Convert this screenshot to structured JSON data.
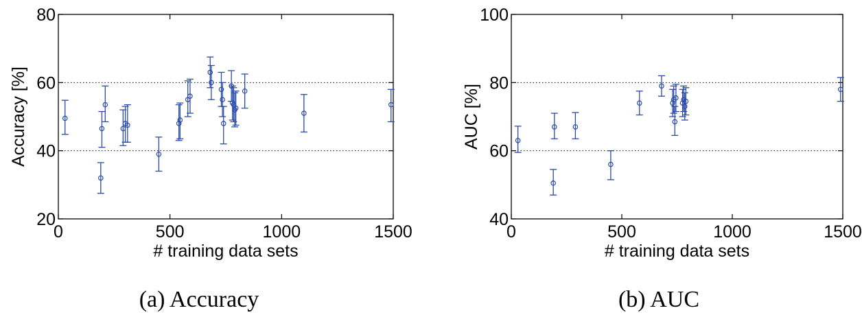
{
  "chart_data": [
    {
      "type": "scatter",
      "caption": "(a)  Accuracy",
      "xlabel": "# training data sets",
      "ylabel": "Accuracy [%]",
      "xlim": [
        0,
        1500
      ],
      "ylim": [
        20,
        80
      ],
      "xticks": [
        0,
        500,
        1000,
        1500
      ],
      "yticks": [
        20,
        40,
        60,
        80
      ],
      "grid": "horizontal dotted",
      "marker": "circle",
      "color": "#2a4aa8",
      "points": [
        {
          "x": 30,
          "y": 49.5,
          "lo": 44.8,
          "hi": 54.8
        },
        {
          "x": 190,
          "y": 32,
          "lo": 27.5,
          "hi": 36.5
        },
        {
          "x": 195,
          "y": 46.5,
          "lo": 41,
          "hi": 51.5
        },
        {
          "x": 210,
          "y": 53.5,
          "lo": 48.5,
          "hi": 59
        },
        {
          "x": 290,
          "y": 46.5,
          "lo": 41.5,
          "hi": 52
        },
        {
          "x": 300,
          "y": 48,
          "lo": 42.5,
          "hi": 53
        },
        {
          "x": 310,
          "y": 47.5,
          "lo": 42.5,
          "hi": 53.5
        },
        {
          "x": 450,
          "y": 39,
          "lo": 34,
          "hi": 44
        },
        {
          "x": 540,
          "y": 48,
          "lo": 43,
          "hi": 53.5
        },
        {
          "x": 545,
          "y": 49,
          "lo": 43.5,
          "hi": 54
        },
        {
          "x": 580,
          "y": 55,
          "lo": 50,
          "hi": 60.5
        },
        {
          "x": 590,
          "y": 56,
          "lo": 51,
          "hi": 61
        },
        {
          "x": 680,
          "y": 63,
          "lo": 58.5,
          "hi": 67.5
        },
        {
          "x": 685,
          "y": 60,
          "lo": 55,
          "hi": 65
        },
        {
          "x": 730,
          "y": 58,
          "lo": 53,
          "hi": 63
        },
        {
          "x": 735,
          "y": 55,
          "lo": 50,
          "hi": 60
        },
        {
          "x": 740,
          "y": 48,
          "lo": 42,
          "hi": 53
        },
        {
          "x": 775,
          "y": 59,
          "lo": 54.5,
          "hi": 63.5
        },
        {
          "x": 780,
          "y": 54,
          "lo": 49,
          "hi": 59
        },
        {
          "x": 785,
          "y": 53.5,
          "lo": 48.5,
          "hi": 58.5
        },
        {
          "x": 790,
          "y": 52,
          "lo": 47,
          "hi": 57
        },
        {
          "x": 795,
          "y": 52.5,
          "lo": 47.5,
          "hi": 57.5
        },
        {
          "x": 835,
          "y": 57.5,
          "lo": 52.5,
          "hi": 62.5
        },
        {
          "x": 1100,
          "y": 51,
          "lo": 45.5,
          "hi": 56.5
        },
        {
          "x": 1490,
          "y": 53.5,
          "lo": 48.5,
          "hi": 58
        }
      ]
    },
    {
      "type": "scatter",
      "caption": "(b)  AUC",
      "xlabel": "# training data sets",
      "ylabel": "AUC [%]",
      "xlim": [
        0,
        1500
      ],
      "ylim": [
        40,
        100
      ],
      "xticks": [
        0,
        500,
        1000,
        1500
      ],
      "yticks": [
        40,
        60,
        80,
        100
      ],
      "grid": "horizontal dotted",
      "marker": "circle",
      "color": "#2a4aa8",
      "points": [
        {
          "x": 30,
          "y": 63,
          "lo": 59.5,
          "hi": 67.2
        },
        {
          "x": 190,
          "y": 50.5,
          "lo": 47,
          "hi": 54.5
        },
        {
          "x": 195,
          "y": 67,
          "lo": 63.5,
          "hi": 71
        },
        {
          "x": 290,
          "y": 67,
          "lo": 63.5,
          "hi": 71.2
        },
        {
          "x": 450,
          "y": 56,
          "lo": 51.5,
          "hi": 60
        },
        {
          "x": 580,
          "y": 74,
          "lo": 70.5,
          "hi": 77.5
        },
        {
          "x": 680,
          "y": 79,
          "lo": 76,
          "hi": 82
        },
        {
          "x": 730,
          "y": 74,
          "lo": 70,
          "hi": 78
        },
        {
          "x": 735,
          "y": 75,
          "lo": 71,
          "hi": 79
        },
        {
          "x": 740,
          "y": 68.5,
          "lo": 64.5,
          "hi": 73
        },
        {
          "x": 745,
          "y": 75.5,
          "lo": 71.5,
          "hi": 79.5
        },
        {
          "x": 775,
          "y": 74,
          "lo": 70,
          "hi": 78
        },
        {
          "x": 780,
          "y": 75,
          "lo": 71.5,
          "hi": 79
        },
        {
          "x": 785,
          "y": 73,
          "lo": 69,
          "hi": 77
        },
        {
          "x": 790,
          "y": 74.5,
          "lo": 70.5,
          "hi": 78.5
        },
        {
          "x": 1490,
          "y": 78,
          "lo": 74.5,
          "hi": 81.5
        }
      ]
    }
  ]
}
